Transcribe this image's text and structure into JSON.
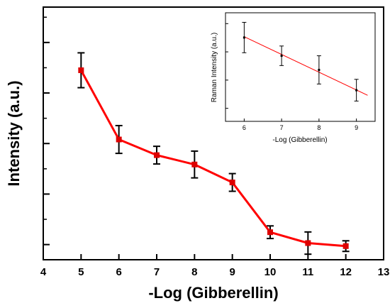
{
  "chart_data": [
    {
      "id": "main",
      "type": "line",
      "xlabel": "-Log (Gibberellin)",
      "ylabel": "Intensity (a.u.)",
      "xlim": [
        4,
        13
      ],
      "x_ticks": [
        4,
        5,
        6,
        7,
        8,
        9,
        10,
        11,
        12,
        13
      ],
      "ylim": [
        0,
        100
      ],
      "y_tick_labels_shown": false,
      "y_minor_ticks": [
        6,
        16,
        26,
        36,
        46,
        56,
        66,
        76,
        86,
        96
      ],
      "y_major_ticks": [
        6,
        26,
        46,
        66,
        86
      ],
      "grid": false,
      "line_color": "#ff0000",
      "marker_color": "#dd0000",
      "errorbar_color": "#000000",
      "series": [
        {
          "x": [
            5,
            6,
            7,
            8,
            9,
            10,
            11,
            12
          ],
          "y": [
            75.0,
            47.6,
            41.4,
            37.7,
            30.6,
            10.9,
            6.6,
            5.4
          ],
          "error": [
            6.9,
            5.5,
            3.5,
            5.3,
            3.5,
            2.5,
            4.4,
            2.1
          ]
        }
      ]
    },
    {
      "id": "inset",
      "type": "scatter",
      "xlabel": "-Log (Gibberellin)",
      "ylabel": "Raman Intensity (a.u.)",
      "xlim": [
        5.5,
        9.5
      ],
      "x_ticks": [
        6,
        7,
        8,
        9
      ],
      "ylim": [
        0,
        100
      ],
      "y_tick_labels_shown": false,
      "y_major_ticks": [
        12,
        38,
        64,
        90
      ],
      "fit_line": {
        "x": [
          6,
          9.3
        ],
        "y": [
          78,
          24
        ],
        "color": "#ff0000"
      },
      "series": [
        {
          "x": [
            6,
            7,
            8,
            9
          ],
          "y": [
            77.2,
            60.4,
            47.4,
            28.7
          ],
          "error": [
            14,
            9,
            13,
            10
          ]
        }
      ]
    }
  ]
}
